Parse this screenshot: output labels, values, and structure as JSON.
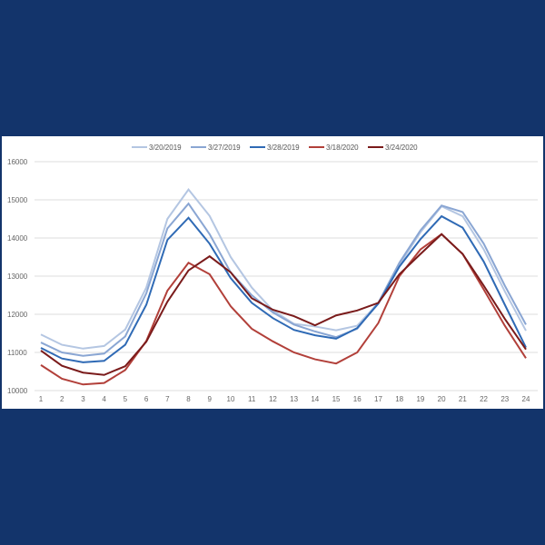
{
  "chart_data": {
    "type": "line",
    "title": "",
    "xlabel": "",
    "ylabel": "",
    "x": [
      1,
      2,
      3,
      4,
      5,
      6,
      7,
      8,
      9,
      10,
      11,
      12,
      13,
      14,
      15,
      16,
      17,
      18,
      19,
      20,
      21,
      22,
      23,
      24
    ],
    "ylim": [
      10000,
      16000
    ],
    "yticks": [
      10000,
      11000,
      12000,
      13000,
      14000,
      15000,
      16000
    ],
    "grid": true,
    "legend_position": "top",
    "series": [
      {
        "name": "3/20/2019",
        "color": "#b4c6e2",
        "values": [
          11470,
          11200,
          11100,
          11170,
          11600,
          12700,
          14500,
          15270,
          14580,
          13500,
          12700,
          12100,
          11750,
          11680,
          11580,
          11700,
          12300,
          13300,
          14150,
          14830,
          14570,
          13700,
          12600,
          11570
        ]
      },
      {
        "name": "3/27/2019",
        "color": "#8aa6d3",
        "values": [
          11260,
          11000,
          10910,
          10970,
          11420,
          12550,
          14250,
          14900,
          14100,
          13100,
          12500,
          12050,
          11730,
          11550,
          11400,
          11620,
          12300,
          13350,
          14200,
          14850,
          14680,
          13850,
          12750,
          11730
        ]
      },
      {
        "name": "3/28/2019",
        "color": "#2f6ab5",
        "values": [
          11120,
          10840,
          10740,
          10780,
          11200,
          12250,
          13950,
          14530,
          13850,
          12950,
          12300,
          11900,
          11590,
          11450,
          11360,
          11640,
          12280,
          13250,
          13970,
          14570,
          14270,
          13380,
          12250,
          11130
        ]
      },
      {
        "name": "3/18/2020",
        "color": "#b2403a",
        "values": [
          10670,
          10310,
          10160,
          10200,
          10540,
          11300,
          12620,
          13350,
          13050,
          12210,
          11620,
          11290,
          11000,
          10820,
          10710,
          11000,
          11770,
          13000,
          13700,
          14100,
          13580,
          12650,
          11700,
          10850
        ]
      },
      {
        "name": "3/24/2020",
        "color": "#7a1b1b",
        "values": [
          11050,
          10650,
          10470,
          10410,
          10640,
          11280,
          12330,
          13150,
          13520,
          13100,
          12420,
          12120,
          11950,
          11710,
          11970,
          12100,
          12300,
          13050,
          13580,
          14100,
          13580,
          12750,
          11880,
          11080
        ]
      }
    ]
  }
}
